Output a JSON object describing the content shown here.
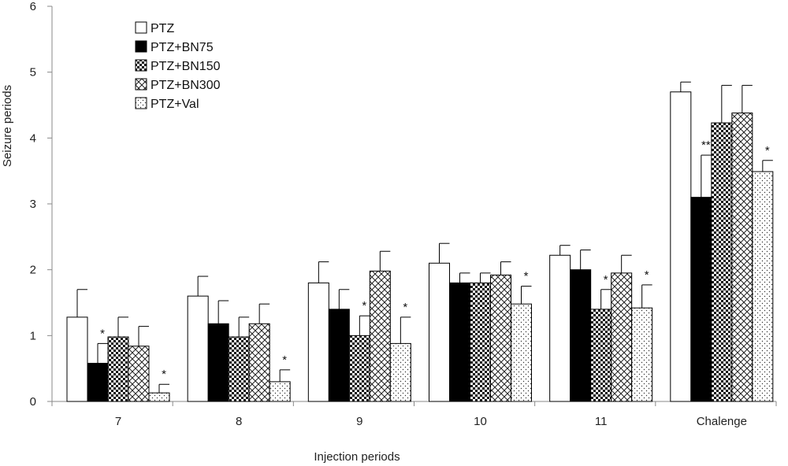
{
  "chart_data": {
    "type": "bar",
    "title": "",
    "xlabel": "Injection periods",
    "ylabel": "Seizure periods",
    "ylim": [
      0,
      6
    ],
    "yticks": [
      "0",
      "1",
      "2",
      "3",
      "4",
      "5",
      "6"
    ],
    "categories": [
      "7",
      "8",
      "9",
      "10",
      "11",
      "Chalenge"
    ],
    "legend_position": "top-left",
    "series": [
      {
        "name": "PTZ",
        "pattern": "white",
        "values": [
          1.28,
          1.6,
          1.8,
          2.1,
          2.22,
          4.7
        ],
        "errors": [
          0.42,
          0.3,
          0.32,
          0.3,
          0.15,
          0.15
        ]
      },
      {
        "name": "PTZ+BN75",
        "pattern": "black",
        "values": [
          0.58,
          1.18,
          1.4,
          1.8,
          2.0,
          3.1
        ],
        "errors": [
          0.3,
          0.35,
          0.3,
          0.15,
          0.3,
          0.64
        ]
      },
      {
        "name": "PTZ+BN150",
        "pattern": "checker",
        "values": [
          0.98,
          0.98,
          1.0,
          1.8,
          1.4,
          4.23
        ],
        "errors": [
          0.3,
          0.3,
          0.3,
          0.15,
          0.3,
          0.57
        ]
      },
      {
        "name": "PTZ+BN300",
        "pattern": "crosshatch",
        "values": [
          0.84,
          1.18,
          1.98,
          1.92,
          1.95,
          4.38
        ],
        "errors": [
          0.3,
          0.3,
          0.3,
          0.2,
          0.27,
          0.42
        ]
      },
      {
        "name": "PTZ+Val",
        "pattern": "dots",
        "values": [
          0.13,
          0.3,
          0.88,
          1.48,
          1.42,
          3.49
        ],
        "errors": [
          0.13,
          0.18,
          0.4,
          0.27,
          0.35,
          0.17
        ]
      }
    ],
    "annotations": [
      {
        "category": 0,
        "series": 1,
        "text": "*"
      },
      {
        "category": 0,
        "series": 4,
        "text": "*"
      },
      {
        "category": 1,
        "series": 4,
        "text": "*"
      },
      {
        "category": 2,
        "series": 2,
        "text": "*"
      },
      {
        "category": 2,
        "series": 4,
        "text": "*"
      },
      {
        "category": 3,
        "series": 4,
        "text": "*"
      },
      {
        "category": 4,
        "series": 2,
        "text": "*"
      },
      {
        "category": 4,
        "series": 4,
        "text": "*"
      },
      {
        "category": 5,
        "series": 1,
        "text": "**"
      },
      {
        "category": 5,
        "series": 4,
        "text": "*"
      }
    ]
  }
}
